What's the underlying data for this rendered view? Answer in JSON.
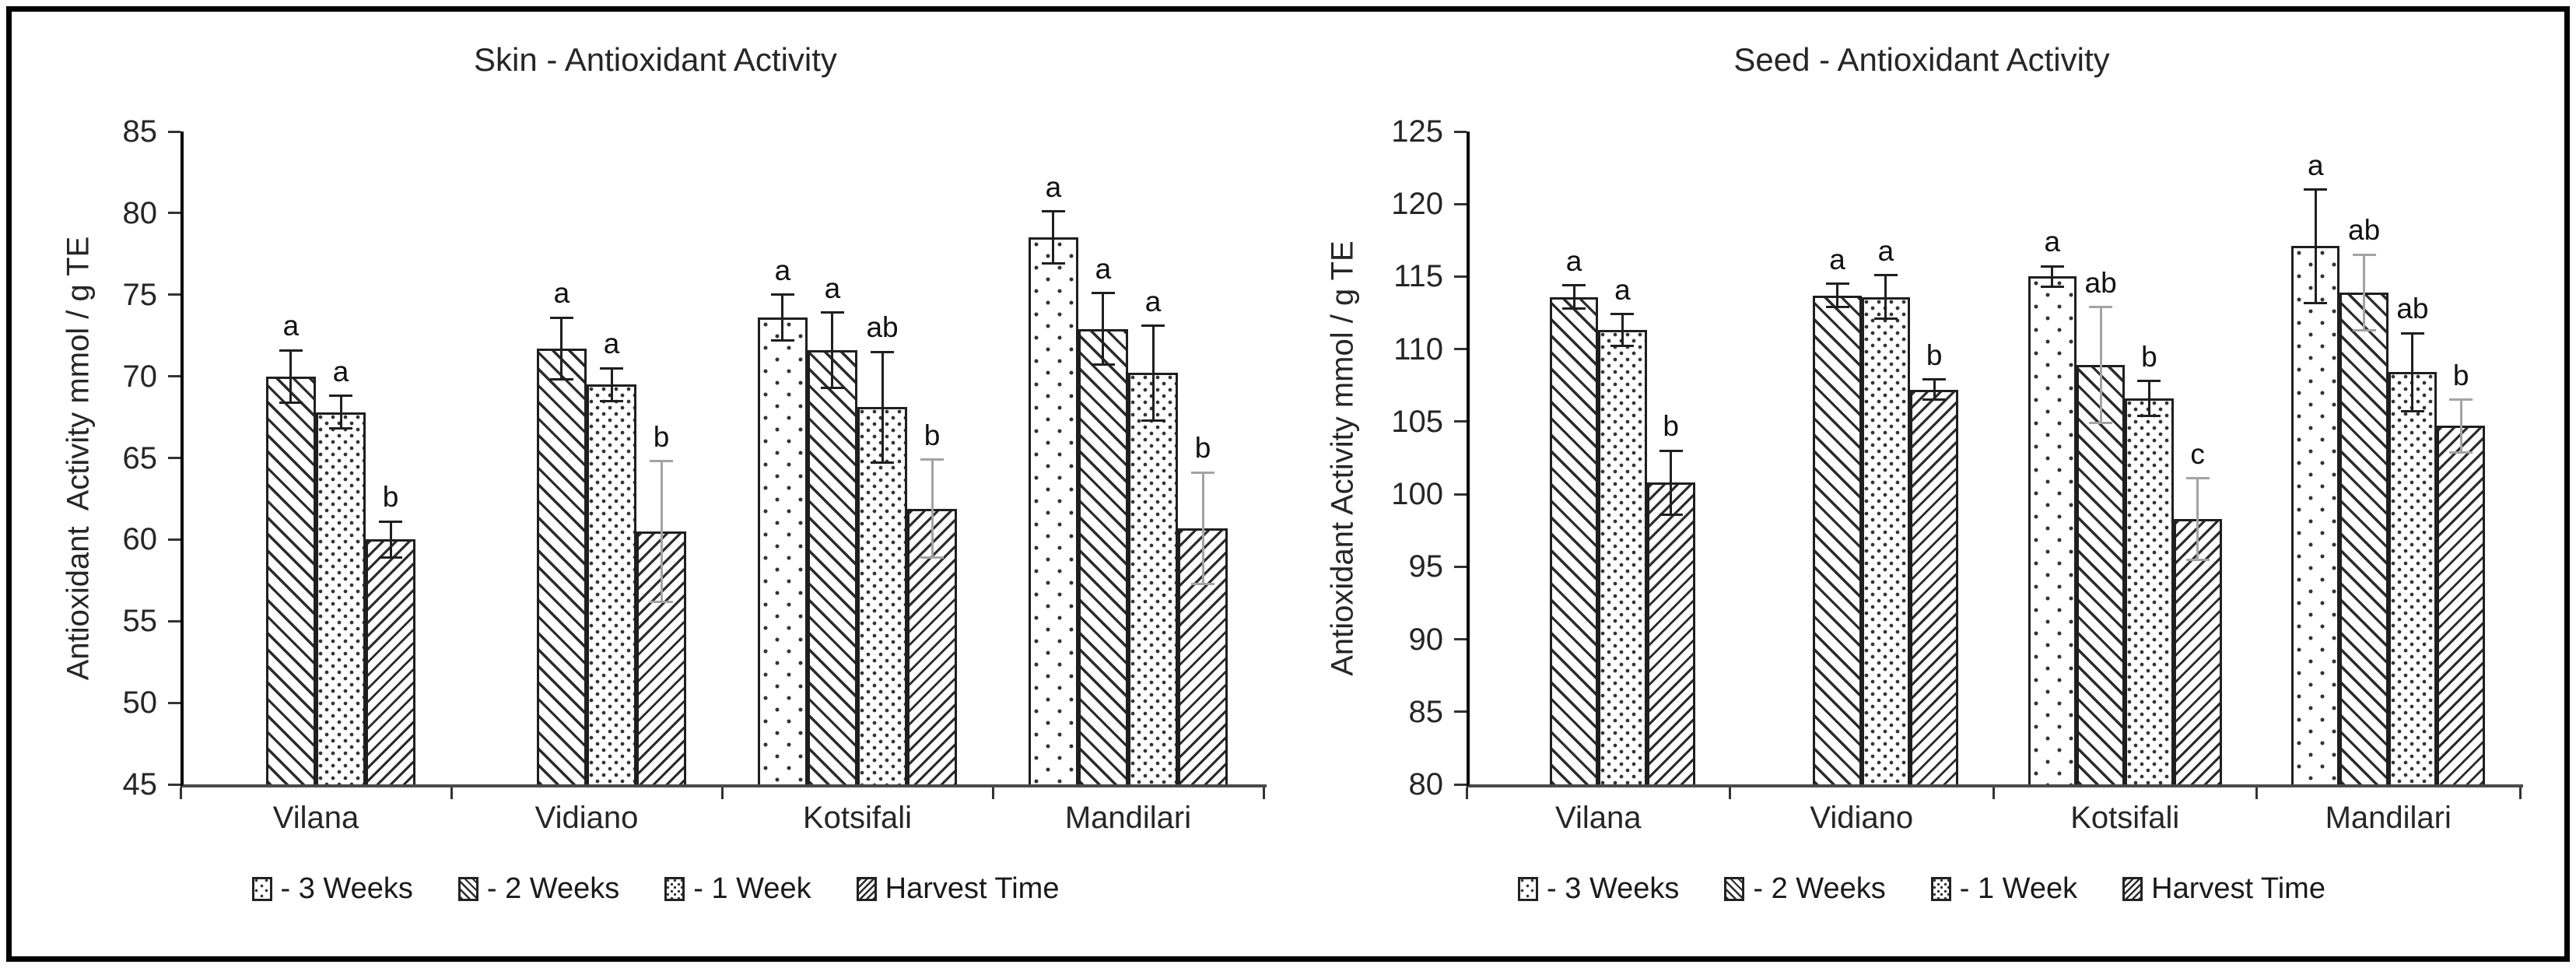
{
  "legend": {
    "items": [
      {
        "label": "- 3 Weeks",
        "pattern": "dots-sparse"
      },
      {
        "label": "- 2 Weeks",
        "pattern": "diag-back"
      },
      {
        "label": "- 1 Week",
        "pattern": "dots-dense"
      },
      {
        "label": "Harvest Time",
        "pattern": "diag-fwd"
      }
    ]
  },
  "chart_data": [
    {
      "type": "bar",
      "title": "Skin - Antioxidant Activity",
      "ylabel": "Antioxidant  Activity mmol / g TE",
      "xlabel": "",
      "ylim": [
        45,
        85
      ],
      "ytick_step": 5,
      "grid": false,
      "legend_position": "bottom",
      "categories": [
        "Vilana",
        "Vidiano",
        "Kotsifali",
        "Mandilari"
      ],
      "series": [
        {
          "name": "- 3 Weeks",
          "pattern": "dots-sparse",
          "values": [
            null,
            null,
            73.6,
            78.5
          ],
          "errors": [
            null,
            null,
            1.4,
            1.6
          ],
          "letters": [
            null,
            null,
            "a",
            "a"
          ],
          "light_error": [
            false,
            false,
            false,
            false
          ]
        },
        {
          "name": "- 2 Weeks",
          "pattern": "diag-back",
          "values": [
            70.0,
            71.7,
            71.6,
            72.9
          ],
          "errors": [
            1.6,
            1.9,
            2.3,
            2.2
          ],
          "letters": [
            "a",
            "a",
            "a",
            "a"
          ],
          "light_error": [
            false,
            false,
            false,
            false
          ]
        },
        {
          "name": "- 1 Week",
          "pattern": "dots-dense",
          "values": [
            67.8,
            69.5,
            68.1,
            70.2
          ],
          "errors": [
            1.0,
            1.0,
            3.4,
            2.9
          ],
          "letters": [
            "a",
            "a",
            "ab",
            "a"
          ],
          "light_error": [
            false,
            false,
            false,
            false
          ]
        },
        {
          "name": "Harvest Time",
          "pattern": "diag-fwd",
          "values": [
            60.0,
            60.5,
            61.9,
            60.7
          ],
          "errors": [
            1.1,
            4.3,
            3.0,
            3.4
          ],
          "letters": [
            "b",
            "b",
            "b",
            "b"
          ],
          "light_error": [
            false,
            true,
            true,
            true
          ]
        }
      ]
    },
    {
      "type": "bar",
      "title": "Seed - Antioxidant Activity",
      "ylabel": "Antioxidant Activity mmol / g TE",
      "xlabel": "",
      "ylim": [
        80,
        125
      ],
      "ytick_step": 5,
      "grid": false,
      "legend_position": "bottom",
      "categories": [
        "Vilana",
        "Vidiano",
        "Kotsifali",
        "Mandilari"
      ],
      "series": [
        {
          "name": "- 3 Weeks",
          "pattern": "dots-sparse",
          "values": [
            null,
            null,
            115.0,
            117.1
          ],
          "errors": [
            null,
            null,
            0.7,
            3.9
          ],
          "letters": [
            null,
            null,
            "a",
            "a"
          ],
          "light_error": [
            false,
            false,
            false,
            false
          ]
        },
        {
          "name": "- 2 Weeks",
          "pattern": "diag-back",
          "values": [
            113.6,
            113.7,
            108.9,
            113.9
          ],
          "errors": [
            0.8,
            0.8,
            4.0,
            2.6
          ],
          "letters": [
            "a",
            "a",
            "ab",
            "ab"
          ],
          "light_error": [
            false,
            false,
            true,
            true
          ]
        },
        {
          "name": "- 1 Week",
          "pattern": "dots-dense",
          "values": [
            111.3,
            113.6,
            106.6,
            108.4
          ],
          "errors": [
            1.1,
            1.5,
            1.2,
            2.7
          ],
          "letters": [
            "a",
            "a",
            "b",
            "ab"
          ],
          "light_error": [
            false,
            false,
            false,
            false
          ]
        },
        {
          "name": "Harvest Time",
          "pattern": "diag-fwd",
          "values": [
            100.8,
            107.2,
            98.3,
            104.7
          ],
          "errors": [
            2.2,
            0.7,
            2.8,
            1.8
          ],
          "letters": [
            "b",
            "b",
            "c",
            "b"
          ],
          "light_error": [
            false,
            false,
            true,
            true
          ]
        }
      ]
    }
  ]
}
